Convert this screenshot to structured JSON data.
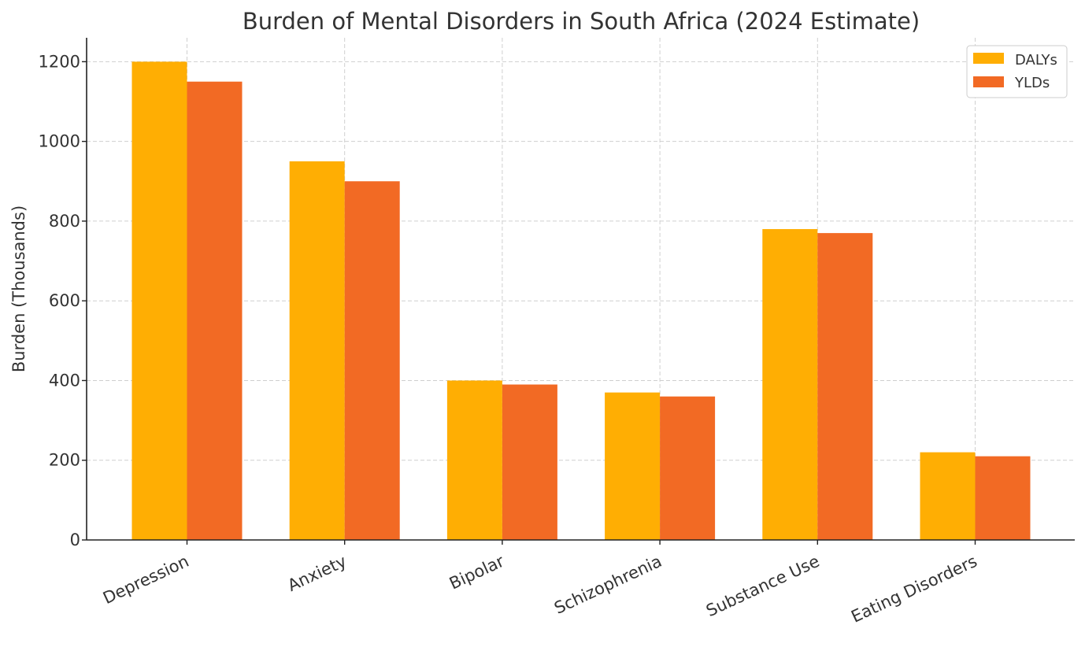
{
  "chart_data": {
    "type": "bar",
    "title": "Burden of Mental Disorders in South Africa (2024 Estimate)",
    "xlabel": "",
    "ylabel": "Burden (Thousands)",
    "categories": [
      "Depression",
      "Anxiety",
      "Bipolar",
      "Schizophrenia",
      "Substance Use",
      "Eating Disorders"
    ],
    "series": [
      {
        "name": "DALYs",
        "color": "#FFAE03",
        "values": [
          1200,
          950,
          400,
          370,
          780,
          220
        ]
      },
      {
        "name": "YLDs",
        "color": "#F26A24",
        "values": [
          1150,
          900,
          390,
          360,
          770,
          210
        ]
      }
    ],
    "ylim": [
      0,
      1260
    ],
    "yticks": [
      0,
      200,
      400,
      600,
      800,
      1000,
      1200
    ],
    "grid": true,
    "legend_position": "top-right"
  }
}
